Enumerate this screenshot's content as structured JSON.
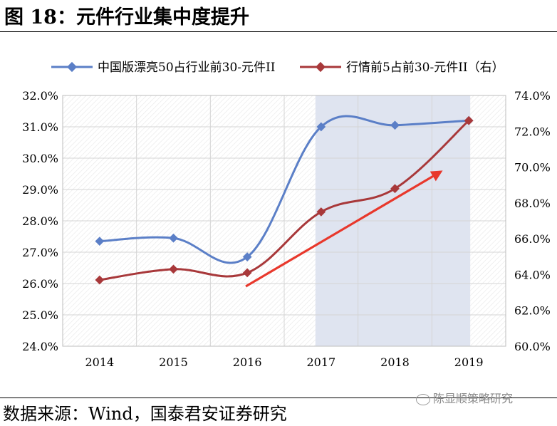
{
  "header": {
    "title": "图 18：元件行业集中度提升"
  },
  "source": {
    "text": "数据来源：Wind，国泰君安证券研究"
  },
  "watermark": {
    "text": "陈显顺策略研究"
  },
  "chart_data": {
    "type": "line",
    "categories": [
      "2014",
      "2015",
      "2016",
      "2017",
      "2018",
      "2019"
    ],
    "series": [
      {
        "name": "中国版漂亮50占行业前30-元件II",
        "axis": "left",
        "color": "#5b7fc7",
        "values": [
          27.35,
          27.45,
          26.85,
          31.0,
          31.05,
          31.2
        ]
      },
      {
        "name": "行情前5占前30-元件II（右）",
        "axis": "right",
        "color": "#a8383a",
        "values": [
          63.7,
          64.3,
          64.1,
          67.5,
          68.8,
          72.6
        ]
      }
    ],
    "y_left": {
      "min": 24.0,
      "max": 32.0,
      "step": 1.0,
      "ticks": [
        "24.0%",
        "25.0%",
        "26.0%",
        "27.0%",
        "28.0%",
        "29.0%",
        "30.0%",
        "31.0%",
        "32.0%"
      ]
    },
    "y_right": {
      "min": 60.0,
      "max": 74.0,
      "step": 2.0,
      "ticks": [
        "60.0%",
        "62.0%",
        "64.0%",
        "66.0%",
        "68.0%",
        "70.0%",
        "72.0%",
        "74.0%"
      ]
    },
    "highlight_range": [
      "2017",
      "2019"
    ],
    "highlight_color": "#dfe4f0",
    "trend_arrow_color": "#e8382c",
    "grid": true,
    "legend_position": "top"
  }
}
